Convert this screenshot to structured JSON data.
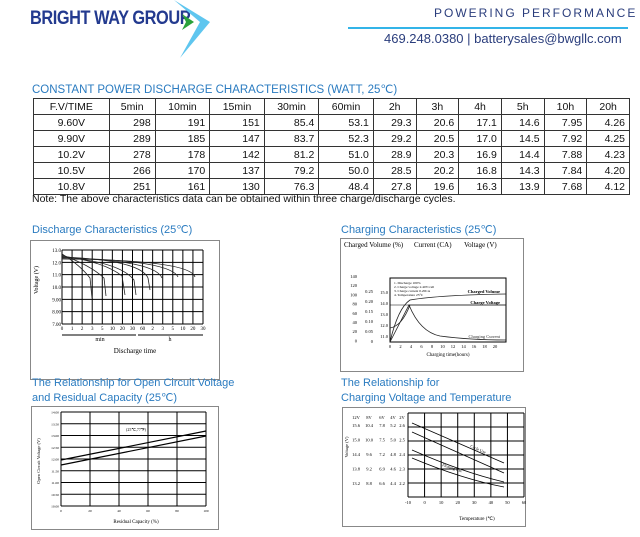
{
  "header": {
    "logo_text": "BRIGHT WAY GROUP",
    "tagline": "POWERING PERFORMANCE",
    "contact": "469.248.0380 | batterysales@bwgllc.com",
    "colors": {
      "brand_blue": "#233a8f",
      "accent_cyan": "#33b4e8",
      "accent_green": "#2aa13a"
    }
  },
  "table": {
    "title": "CONSTANT POWER DISCHARGE CHARACTERISTICS (WATT, 25℃)",
    "columns": [
      "F.V/TIME",
      "5min",
      "10min",
      "15min",
      "30min",
      "60min",
      "2h",
      "3h",
      "4h",
      "5h",
      "10h",
      "20h"
    ],
    "rows": [
      [
        "9.60V",
        "298",
        "191",
        "151",
        "85.4",
        "53.1",
        "29.3",
        "20.6",
        "17.1",
        "14.6",
        "7.95",
        "4.26"
      ],
      [
        "9.90V",
        "289",
        "185",
        "147",
        "83.7",
        "52.3",
        "29.2",
        "20.5",
        "17.0",
        "14.5",
        "7.92",
        "4.25"
      ],
      [
        "10.2V",
        "278",
        "178",
        "142",
        "81.2",
        "51.0",
        "28.9",
        "20.3",
        "16.9",
        "14.4",
        "7.88",
        "4.23"
      ],
      [
        "10.5V",
        "266",
        "170",
        "137",
        "79.2",
        "50.0",
        "28.5",
        "20.2",
        "16.8",
        "14.3",
        "7.84",
        "4.20"
      ],
      [
        "10.8V",
        "251",
        "161",
        "130",
        "76.3",
        "48.4",
        "27.8",
        "19.6",
        "16.3",
        "13.9",
        "7.68",
        "4.12"
      ]
    ],
    "note": "Note: The above characteristics data can be obtained within three charge/discharge cycles."
  },
  "charts": {
    "discharge": {
      "title": "Discharge Characteristics (25℃)",
      "ylabel": "Voltage (V)",
      "yticks": [
        "13.0",
        "12.0",
        "11.0",
        "10.0",
        "9.00",
        "8.00",
        "7.00"
      ],
      "xticks": [
        "0",
        "1",
        "2",
        "3",
        "5",
        "10",
        "20",
        "30",
        "60",
        "2",
        "3",
        "5",
        "10",
        "20",
        "30"
      ],
      "unit_min": "min",
      "unit_h": "h",
      "xlabel": "Discharge time"
    },
    "charging": {
      "title": "Charging Characteristics (25℃)",
      "axis_headers": [
        "Charged Volume (%)",
        "Current (CA)",
        "Voltage (V)"
      ],
      "pct_ticks": [
        "140",
        "120",
        "100",
        "80",
        "60",
        "40",
        "20",
        "0"
      ],
      "ca_ticks": [
        "0.25",
        "0.20",
        "0.15",
        "0.10",
        "0.05",
        "0"
      ],
      "v_ticks": [
        "15.0",
        "14.0",
        "13.0",
        "12.0",
        "11.0"
      ],
      "xticks": [
        "0",
        "2",
        "4",
        "6",
        "8",
        "10",
        "12",
        "14",
        "16",
        "18",
        "20"
      ],
      "xlabel": "Charging time(hours)",
      "legend_notes": [
        "1. Discharge 100%",
        "2. Charge voltage 2.40V/cell",
        "3. Charge current 0.20CA",
        "4. Temperature 25°C"
      ],
      "series_labels": [
        "Charged Volume",
        "Charge Voltage",
        "Charging Current"
      ]
    },
    "ocv": {
      "title_line1": "The Relationship for Open Circuit Voltage",
      "title_line2": "and Residual Capacity (25℃)",
      "ylabel": "Open Circuit Voltage (V)",
      "yticks": [
        "14.00",
        "13.50",
        "13.00",
        "12.50",
        "12.00",
        "11.50",
        "11.00",
        "10.50",
        "10.00"
      ],
      "xticks": [
        "0",
        "20",
        "40",
        "60",
        "80",
        "100"
      ],
      "xlabel": "Residual Capacity (%)",
      "annotation": "(25℃,77℉)"
    },
    "temperature": {
      "title_line1": "The Relationship for",
      "title_line2": "Charging Voltage and Temperature",
      "ylabel": "Voltage (V)",
      "voltage_headers": [
        "12V",
        "8V",
        "6V",
        "4V",
        "2V"
      ],
      "scales": [
        [
          "15.6",
          "10.4",
          "7.8",
          "5.2",
          "2.6"
        ],
        [
          "15.0",
          "10.0",
          "7.5",
          "5.0",
          "2.5"
        ],
        [
          "14.4",
          "9.6",
          "7.2",
          "4.8",
          "2.4"
        ],
        [
          "13.8",
          "9.2",
          "6.9",
          "4.6",
          "2.3"
        ],
        [
          "13.2",
          "8.8",
          "6.6",
          "4.4",
          "2.2"
        ]
      ],
      "xticks": [
        "-10",
        "0",
        "10",
        "20",
        "30",
        "40",
        "50",
        "60"
      ],
      "xlabel": "Temperature (℃)",
      "series_labels": [
        "Cycle Use",
        "Floating Use"
      ]
    }
  }
}
